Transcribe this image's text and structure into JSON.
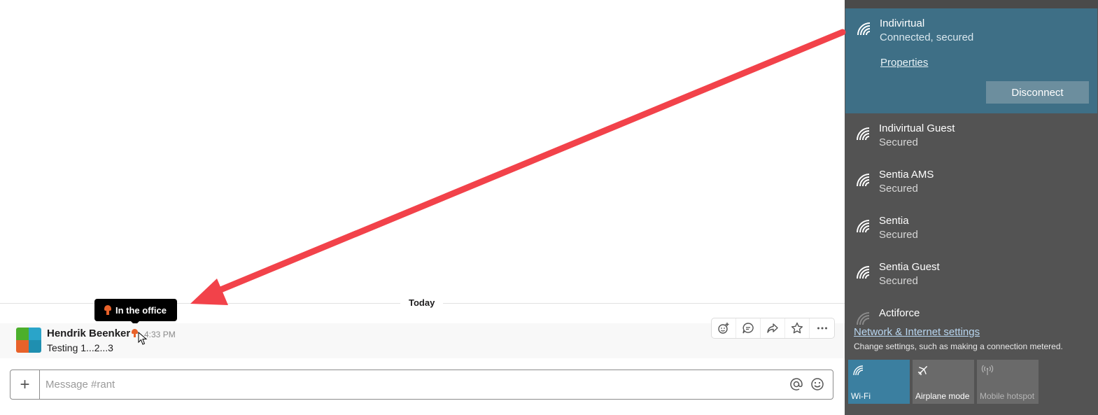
{
  "slack": {
    "day_divider": "Today",
    "tooltip": {
      "text": "In the office",
      "icon": "mushroom-emoji"
    },
    "message": {
      "author": "Hendrik Beenker",
      "status_icon": "mushroom-emoji",
      "time": "4:33 PM",
      "text": "Testing 1...2...3"
    },
    "message_actions": [
      "add-reaction-icon",
      "start-thread-icon",
      "share-message-icon",
      "save-star-icon",
      "more-actions-icon"
    ],
    "composer": {
      "placeholder": "Message #rant",
      "value": ""
    }
  },
  "annotation": {
    "arrow_color": "#f2424a"
  },
  "network_flyout": {
    "networks": [
      {
        "name": "Indivirtual",
        "status": "Connected, secured",
        "active": true
      },
      {
        "name": "Indivirtual Guest",
        "status": "Secured"
      },
      {
        "name": "Sentia AMS",
        "status": "Secured"
      },
      {
        "name": "Sentia",
        "status": "Secured"
      },
      {
        "name": "Sentia Guest",
        "status": "Secured"
      },
      {
        "name": "Actiforce",
        "status": ""
      }
    ],
    "properties_label": "Properties",
    "disconnect_label": "Disconnect",
    "settings_link": "Network & Internet settings",
    "settings_sub": "Change settings, such as making a connection metered.",
    "quick_actions": [
      {
        "label": "Wi-Fi",
        "icon": "wifi-icon",
        "active": true
      },
      {
        "label": "Airplane mode",
        "icon": "airplane-icon",
        "active": false
      },
      {
        "label": "Mobile hotspot",
        "icon": "hotspot-icon",
        "active": false
      }
    ]
  }
}
